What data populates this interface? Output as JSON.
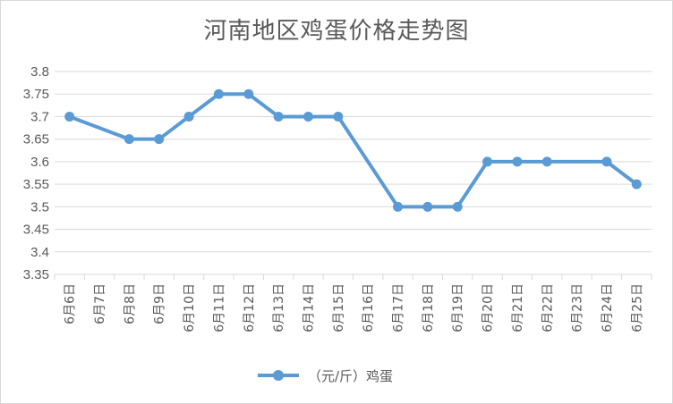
{
  "chart_data": {
    "type": "line",
    "title": "河南地区鸡蛋价格走势图",
    "categories": [
      "6月6日",
      "6月7日",
      "6月8日",
      "6月9日",
      "6月10日",
      "6月11日",
      "6月12日",
      "6月13日",
      "6月14日",
      "6月15日",
      "6月16日",
      "6月17日",
      "6月18日",
      "6月19日",
      "6月20日",
      "6月21日",
      "6月22日",
      "6月23日",
      "6月24日",
      "6月25日"
    ],
    "series": [
      {
        "name": "（元/斤）鸡蛋",
        "values": [
          3.7,
          null,
          3.65,
          3.65,
          3.7,
          3.75,
          3.75,
          3.7,
          3.7,
          3.7,
          null,
          3.5,
          3.5,
          3.5,
          3.6,
          3.6,
          3.6,
          null,
          3.6,
          3.55
        ]
      }
    ],
    "yticks": [
      "3.8",
      "3.75",
      "3.7",
      "3.65",
      "3.6",
      "3.55",
      "3.5",
      "3.45",
      "3.4",
      "3.35"
    ],
    "ylim": [
      3.35,
      3.8
    ],
    "xlabel": "",
    "ylabel": "",
    "grid": true,
    "legend_position": "bottom",
    "colors": {
      "series": "#5b9bd5",
      "grid": "#d9d9d9",
      "text": "#595959"
    }
  }
}
